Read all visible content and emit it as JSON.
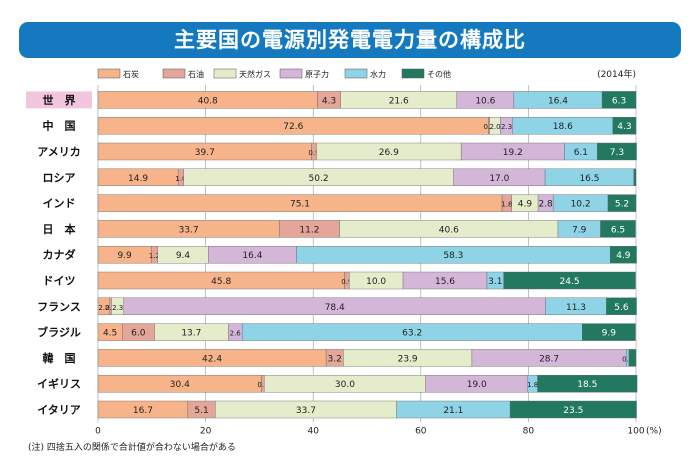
{
  "title": "主要国の電源別発電電力量の構成比",
  "year_note": "(2014年)",
  "footnote": "(注) 四捨五入の関係で合計値が合わない場合がある",
  "colors": {
    "石炭": "#f7b48a",
    "石油": "#e4a698",
    "天然ガス": "#e5eccc",
    "原子力": "#d4b6d8",
    "水力": "#8fd4e6",
    "その他": "#23795f",
    "title_bg": "#1479bf"
  },
  "chart_data": {
    "type": "bar",
    "orientation": "horizontal",
    "stacked": true,
    "year": "2014年",
    "legend_position": "top",
    "x_axis": {
      "ticks": [
        "0",
        "20",
        "40",
        "60",
        "80",
        "100"
      ],
      "unit": "(%)",
      "range": [
        0,
        100
      ]
    },
    "categories": [
      "世　界",
      "中　国",
      "アメリカ",
      "ロシア",
      "インド",
      "日　本",
      "カナダ",
      "ドイツ",
      "フランス",
      "ブラジル",
      "韓　国",
      "イギリス",
      "イタリア"
    ],
    "series": [
      {
        "name": "石炭",
        "values": [
          40.8,
          72.6,
          39.7,
          14.9,
          75.1,
          33.7,
          9.9,
          45.8,
          2.2,
          4.5,
          42.4,
          30.4,
          16.7
        ]
      },
      {
        "name": "石油",
        "values": [
          4.3,
          0.2,
          0.9,
          1.0,
          1.8,
          11.2,
          1.2,
          0.9,
          0.3,
          6.0,
          3.2,
          0.5,
          5.1
        ]
      },
      {
        "name": "天然ガス",
        "values": [
          21.6,
          2.0,
          26.9,
          50.2,
          4.9,
          40.6,
          9.4,
          10.0,
          2.3,
          13.7,
          23.9,
          30.0,
          33.7
        ]
      },
      {
        "name": "原子力",
        "values": [
          10.6,
          2.3,
          19.2,
          17.0,
          2.8,
          0,
          16.4,
          15.6,
          78.4,
          2.6,
          28.7,
          19.0,
          0
        ]
      },
      {
        "name": "水力",
        "values": [
          16.4,
          18.6,
          6.1,
          16.5,
          10.2,
          7.9,
          58.3,
          3.1,
          11.3,
          63.2,
          0.5,
          1.8,
          21.1
        ]
      },
      {
        "name": "その他",
        "values": [
          6.3,
          4.3,
          7.3,
          0.4,
          5.2,
          6.5,
          4.9,
          24.5,
          5.6,
          9.9,
          1.3,
          18.5,
          23.5
        ]
      }
    ]
  }
}
